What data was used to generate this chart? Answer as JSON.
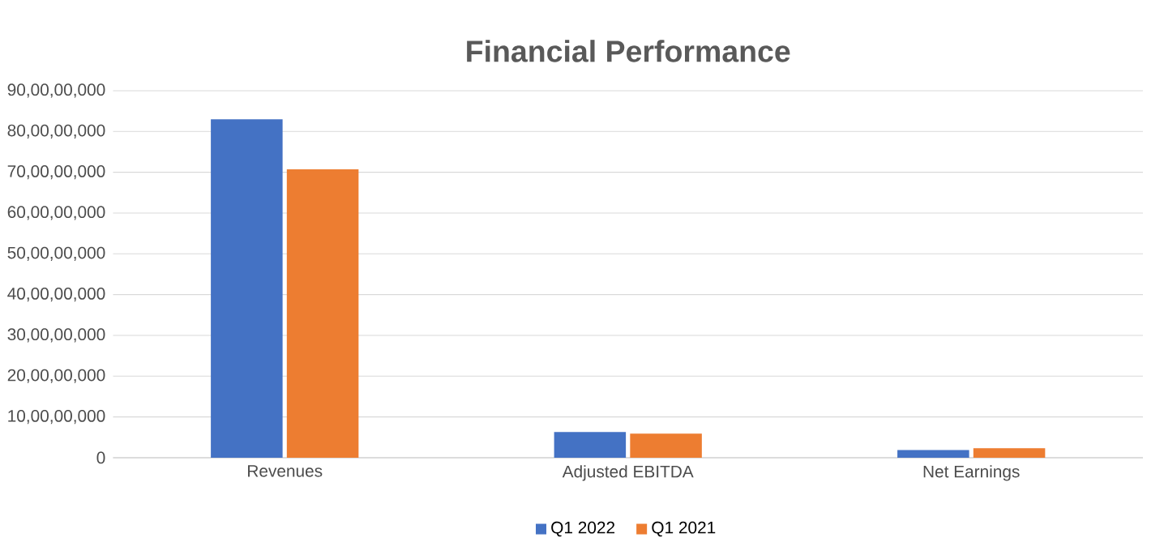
{
  "chart_data": {
    "type": "bar",
    "title": "Financial Performance",
    "categories": [
      "Revenues",
      "Adjusted EBITDA",
      "Net Earnings"
    ],
    "series": [
      {
        "name": "Q1 2022",
        "color": "#4472c4",
        "values": [
          830000000,
          63000000,
          19000000
        ]
      },
      {
        "name": "Q1 2021",
        "color": "#ed7d31",
        "values": [
          707000000,
          59000000,
          23000000
        ]
      }
    ],
    "ylim": [
      0,
      900000000
    ],
    "yticks": [
      0,
      {
        "value": 100000000,
        "label": "10,00,00,000"
      },
      {
        "value": 200000000,
        "label": "20,00,00,000"
      },
      {
        "value": 300000000,
        "label": "30,00,00,000"
      },
      {
        "value": 400000000,
        "label": "40,00,00,000"
      },
      {
        "value": 500000000,
        "label": "50,00,00,000"
      },
      {
        "value": 600000000,
        "label": "60,00,00,000"
      },
      {
        "value": 700000000,
        "label": "70,00,00,000"
      },
      {
        "value": 800000000,
        "label": "80,00,00,000"
      },
      {
        "value": 900000000,
        "label": "90,00,00,000"
      }
    ],
    "grid": "y",
    "legend": "bottom"
  }
}
